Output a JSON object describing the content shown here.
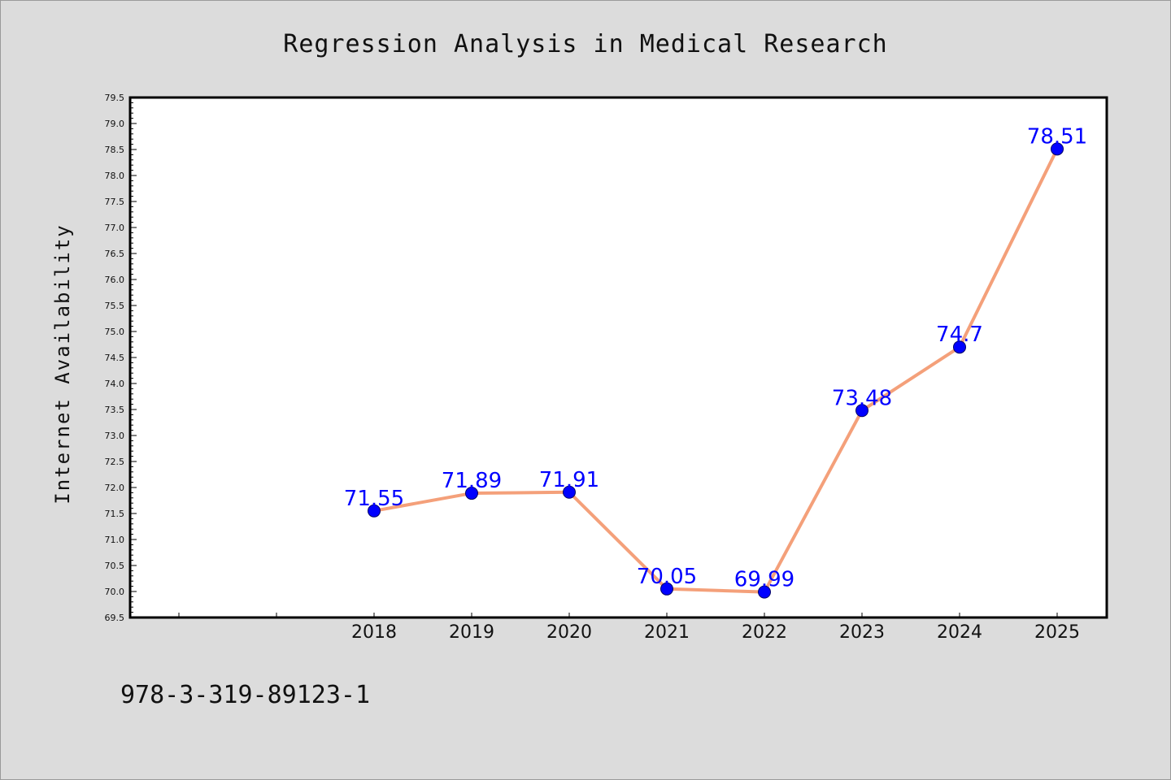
{
  "chart_data": {
    "type": "line",
    "title": "Regression Analysis in Medical Research",
    "ylabel": "Internet Availability",
    "xlabel": "",
    "categories": [
      "2018",
      "2019",
      "2020",
      "2021",
      "2022",
      "2023",
      "2024",
      "2025"
    ],
    "values": [
      71.55,
      71.89,
      71.91,
      70.05,
      69.99,
      73.48,
      74.7,
      78.51
    ],
    "data_labels": [
      "71.55",
      "71.89",
      "71.91",
      "70.05",
      "69.99",
      "73.48",
      "74.7",
      "78.51"
    ],
    "ylim": [
      69.5,
      79.5
    ],
    "yticks": [
      "69.5",
      "70.0",
      "70.5",
      "71.0",
      "71.5",
      "72.0",
      "72.5",
      "73.0",
      "73.5",
      "74.0",
      "74.5",
      "75.0",
      "75.5",
      "76.0",
      "76.5",
      "77.0",
      "77.5",
      "78.0",
      "78.5",
      "79.0",
      "79.5"
    ],
    "line_color": "#f4a07a",
    "marker_color": "#0000ff",
    "label_color": "#0000ff",
    "grid": false,
    "legend": "none"
  },
  "footer": {
    "isbn": "978-3-319-89123-1"
  },
  "colors": {
    "background": "#dcdcdc",
    "plot_background": "#ffffff"
  }
}
